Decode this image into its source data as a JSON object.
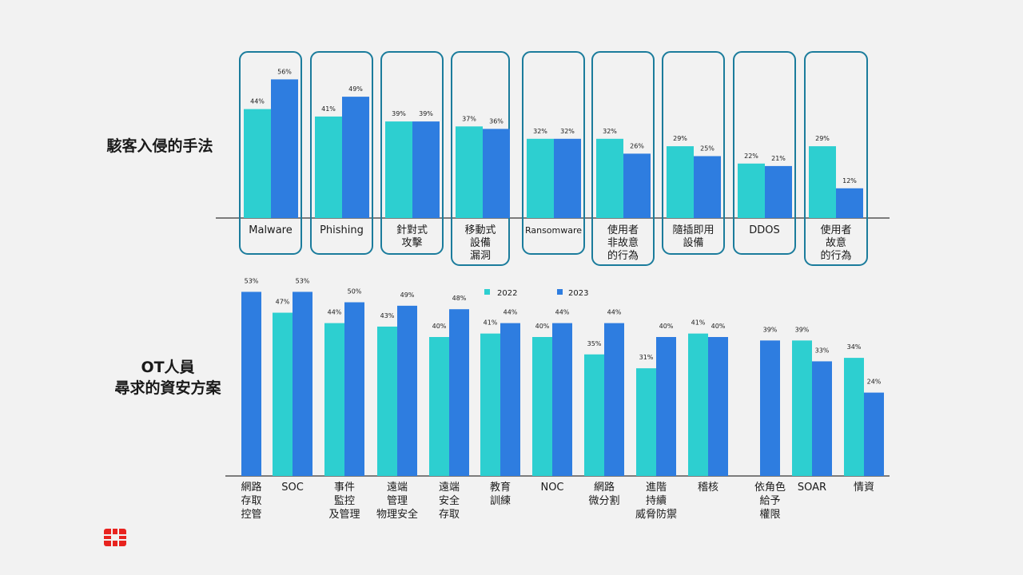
{
  "section_titles": {
    "top": "駭客入侵的手法",
    "bottom_line1": "OT人員",
    "bottom_line2": "尋求的資安方案"
  },
  "colors": {
    "series_2022": "#2dcfd0",
    "series_2023": "#2e7de0",
    "box_stroke": "#1b7c9c",
    "baseline": "#555555"
  },
  "chart_data": [
    {
      "type": "bar",
      "title": "駭客入侵的手法",
      "categories": [
        "Malware",
        "Phishing",
        "針對式\n攻擊",
        "移動式\n設備\n漏洞",
        "Ransomware",
        "使用者\n非故意\n的行為",
        "隨插即用\n設備",
        "DDOS",
        "使用者\n故意\n的行為"
      ],
      "series": [
        {
          "name": "2022",
          "values": [
            44,
            41,
            39,
            37,
            32,
            32,
            29,
            22,
            29
          ]
        },
        {
          "name": "2023",
          "values": [
            56,
            49,
            39,
            36,
            32,
            26,
            25,
            21,
            12
          ]
        }
      ],
      "value_suffix": "%",
      "ylim": [
        0,
        60
      ],
      "grid": false
    },
    {
      "type": "bar",
      "title": "OT人員尋求的資安方案",
      "categories": [
        "網路\n存取\n控管",
        "SOC",
        "事件\n監控\n及管理",
        "遠端\n管理\n物理安全",
        "遠端\n安全\n存取",
        "教育\n訓練",
        "NOC",
        "網路\n微分割",
        "進階\n持續\n威脅防禦",
        "稽核",
        "依角色\n給予\n權限",
        "SOAR",
        "情資"
      ],
      "series": [
        {
          "name": "2022",
          "values": [
            null,
            47,
            44,
            43,
            40,
            41,
            40,
            35,
            31,
            41,
            null,
            39,
            34
          ]
        },
        {
          "name": "2023",
          "values": [
            53,
            53,
            50,
            49,
            48,
            44,
            44,
            44,
            40,
            40,
            39,
            33,
            24
          ]
        }
      ],
      "value_suffix": "%",
      "ylim": [
        0,
        60
      ],
      "legend": "top-center",
      "grid": false
    }
  ]
}
